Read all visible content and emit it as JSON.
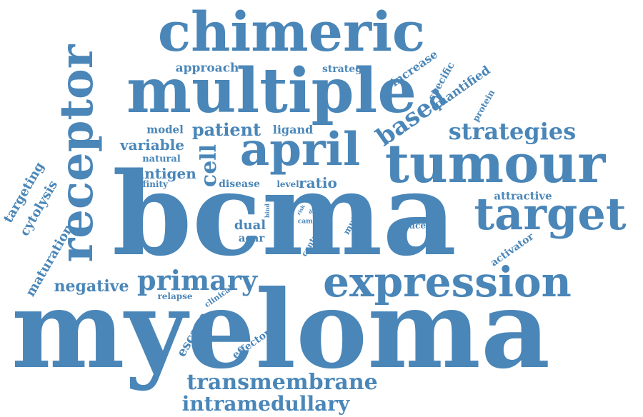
{
  "color": "#4a86b8",
  "words": [
    {
      "id": "myeloma",
      "text": "myeloma"
    },
    {
      "id": "bcma",
      "text": "bcma"
    },
    {
      "id": "chimeric",
      "text": "chimeric"
    },
    {
      "id": "multiple",
      "text": "multiple"
    },
    {
      "id": "receptor",
      "text": "receptor"
    },
    {
      "id": "april",
      "text": "april"
    },
    {
      "id": "tumour",
      "text": "tumour"
    },
    {
      "id": "target",
      "text": "target"
    },
    {
      "id": "expression",
      "text": "expression"
    },
    {
      "id": "primary",
      "text": "primary"
    },
    {
      "id": "strategies",
      "text": "strategies"
    },
    {
      "id": "based",
      "text": "based"
    },
    {
      "id": "transmembrane",
      "text": "transmembrane"
    },
    {
      "id": "intramedullary",
      "text": "intramedullary"
    },
    {
      "id": "patient",
      "text": "patient"
    },
    {
      "id": "variable",
      "text": "variable"
    },
    {
      "id": "antigen",
      "text": "antigen"
    },
    {
      "id": "cell",
      "text": "cell"
    },
    {
      "id": "approach",
      "text": "approach"
    },
    {
      "id": "strategy",
      "text": "strategy"
    },
    {
      "id": "increase",
      "text": "increase"
    },
    {
      "id": "specific",
      "text": "specific"
    },
    {
      "id": "quantified",
      "text": "quantified"
    },
    {
      "id": "protein",
      "text": "protein"
    },
    {
      "id": "model",
      "text": "model"
    },
    {
      "id": "ligand",
      "text": "ligand"
    },
    {
      "id": "natural",
      "text": "natural"
    },
    {
      "id": "affinity",
      "text": "affinity"
    },
    {
      "id": "disease",
      "text": "disease"
    },
    {
      "id": "level",
      "text": "level"
    },
    {
      "id": "ratio",
      "text": "ratio"
    },
    {
      "id": "attractive",
      "text": "attractive"
    },
    {
      "id": "reduce",
      "text": "reduce"
    },
    {
      "id": "activator",
      "text": "activator"
    },
    {
      "id": "targeting",
      "text": "targeting"
    },
    {
      "id": "cytolysis",
      "text": "cytolysis"
    },
    {
      "id": "maturation",
      "text": "maturation"
    },
    {
      "id": "negative",
      "text": "negative"
    },
    {
      "id": "dual",
      "text": "dual"
    },
    {
      "id": "acar",
      "text": "acar"
    },
    {
      "id": "bind",
      "text": "bind"
    },
    {
      "id": "risk",
      "text": "risk"
    },
    {
      "id": "day",
      "text": "day"
    },
    {
      "id": "caml",
      "text": "caml"
    },
    {
      "id": "control",
      "text": "control"
    },
    {
      "id": "mutant",
      "text": "mutant"
    },
    {
      "id": "relapse",
      "text": "relapse"
    },
    {
      "id": "clinical",
      "text": "clinical"
    },
    {
      "id": "escape",
      "text": "escape"
    },
    {
      "id": "effector",
      "text": "effector"
    }
  ]
}
